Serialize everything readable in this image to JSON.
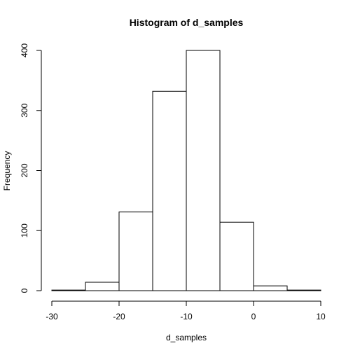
{
  "chart_data": {
    "type": "bar",
    "title": "Histogram of d_samples",
    "xlabel": "d_samples",
    "ylabel": "Frequency",
    "bins": [
      {
        "x0": -30,
        "x1": -25,
        "count": 1
      },
      {
        "x0": -25,
        "x1": -20,
        "count": 14
      },
      {
        "x0": -20,
        "x1": -15,
        "count": 131
      },
      {
        "x0": -15,
        "x1": -10,
        "count": 332
      },
      {
        "x0": -10,
        "x1": -5,
        "count": 400
      },
      {
        "x0": -5,
        "x1": 0,
        "count": 114
      },
      {
        "x0": 0,
        "x1": 5,
        "count": 8
      },
      {
        "x0": 5,
        "x1": 10,
        "count": 1
      }
    ],
    "xticks": [
      -30,
      -20,
      -10,
      0,
      10
    ],
    "yticks": [
      0,
      100,
      200,
      300,
      400
    ],
    "xlim": [
      -30,
      10
    ],
    "ylim": [
      0,
      400
    ],
    "grid": false,
    "colors": {
      "bar_fill": "#ffffff",
      "bar_stroke": "#000000",
      "axis": "#000000"
    }
  }
}
